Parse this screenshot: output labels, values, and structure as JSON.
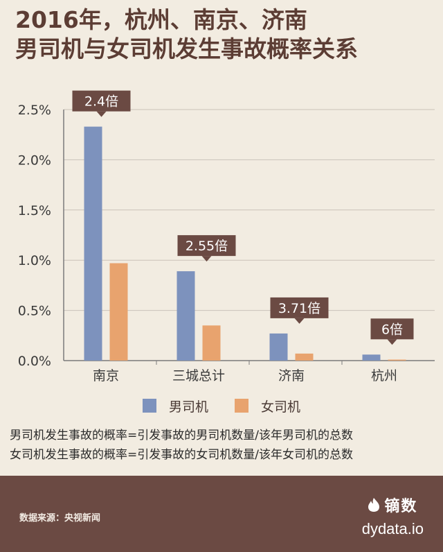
{
  "title": {
    "line1": "2016年，杭州、南京、济南",
    "line2": "男司机与女司机发生事故概率关系"
  },
  "chart_data": {
    "type": "bar",
    "categories": [
      "南京",
      "三城总计",
      "济南",
      "杭州"
    ],
    "series": [
      {
        "name": "男司机",
        "values": [
          2.33,
          0.89,
          0.27,
          0.06
        ]
      },
      {
        "name": "女司机",
        "values": [
          0.97,
          0.35,
          0.07,
          0.01
        ]
      }
    ],
    "ratio_labels": [
      "2.4倍",
      "2.55倍",
      "3.71倍",
      "6倍"
    ],
    "yticks": [
      "0.0%",
      "0.5%",
      "1.0%",
      "1.5%",
      "2.0%",
      "2.5%"
    ],
    "ylim": [
      0,
      2.5
    ],
    "xlabel": "",
    "ylabel": "",
    "colors": {
      "男司机": "#7d92bd",
      "女司机": "#e8a36e",
      "callout": "#6b4a43"
    }
  },
  "notes": [
    "男司机发生事故的概率=引发事故的男司机数量/该年男司机的总数",
    "女司机发生事故的概率=引发事故的女司机数量/该年女司机的总数"
  ],
  "footer": {
    "source": "数据来源：央视新闻",
    "brand_cn": "镝数",
    "brand_url": "dydata.io",
    "logo_icon": "flame-icon"
  }
}
